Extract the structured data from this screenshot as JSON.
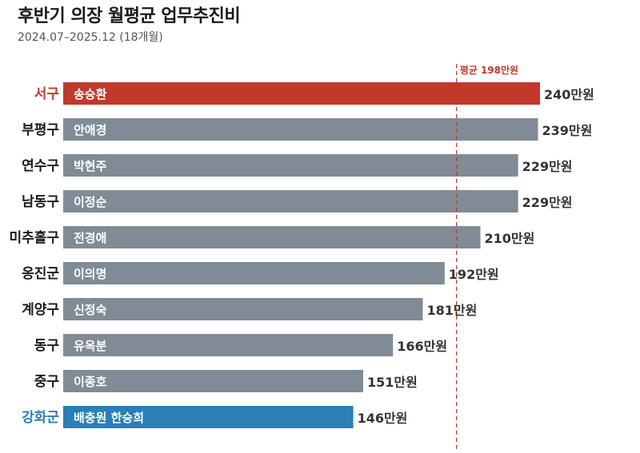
{
  "title": "후반기 의장 월평균 업무추진비",
  "subtitle": "2024.07–2025.12 (18개월)",
  "colors": {
    "highlight_top": "#c0392b",
    "highlight_bottom": "#2a7fb5",
    "default_bar": "#808b96",
    "average_line": "#c0392b"
  },
  "chart_data": {
    "type": "bar",
    "orientation": "horizontal",
    "categories": [
      "서구",
      "부평구",
      "연수구",
      "남동구",
      "미추홀구",
      "옹진군",
      "계양구",
      "동구",
      "중구",
      "강화군"
    ],
    "names": [
      "송승환",
      "안애경",
      "박현주",
      "이정순",
      "전경애",
      "이의명",
      "신정숙",
      "유옥분",
      "이종호",
      "배충원  한승희"
    ],
    "values": [
      240,
      239,
      229,
      229,
      210,
      192,
      181,
      166,
      151,
      146
    ],
    "value_labels": [
      "240만원",
      "239만원",
      "229만원",
      "229만원",
      "210만원",
      "192만원",
      "181만원",
      "166만원",
      "151만원",
      "146만원"
    ],
    "average": {
      "value": 198,
      "label": "평균 198만원"
    },
    "unit": "만원",
    "highlight": {
      "서구": "highlight_top",
      "강화군": "highlight_bottom"
    },
    "xlim": [
      0,
      240
    ],
    "grid": false
  }
}
